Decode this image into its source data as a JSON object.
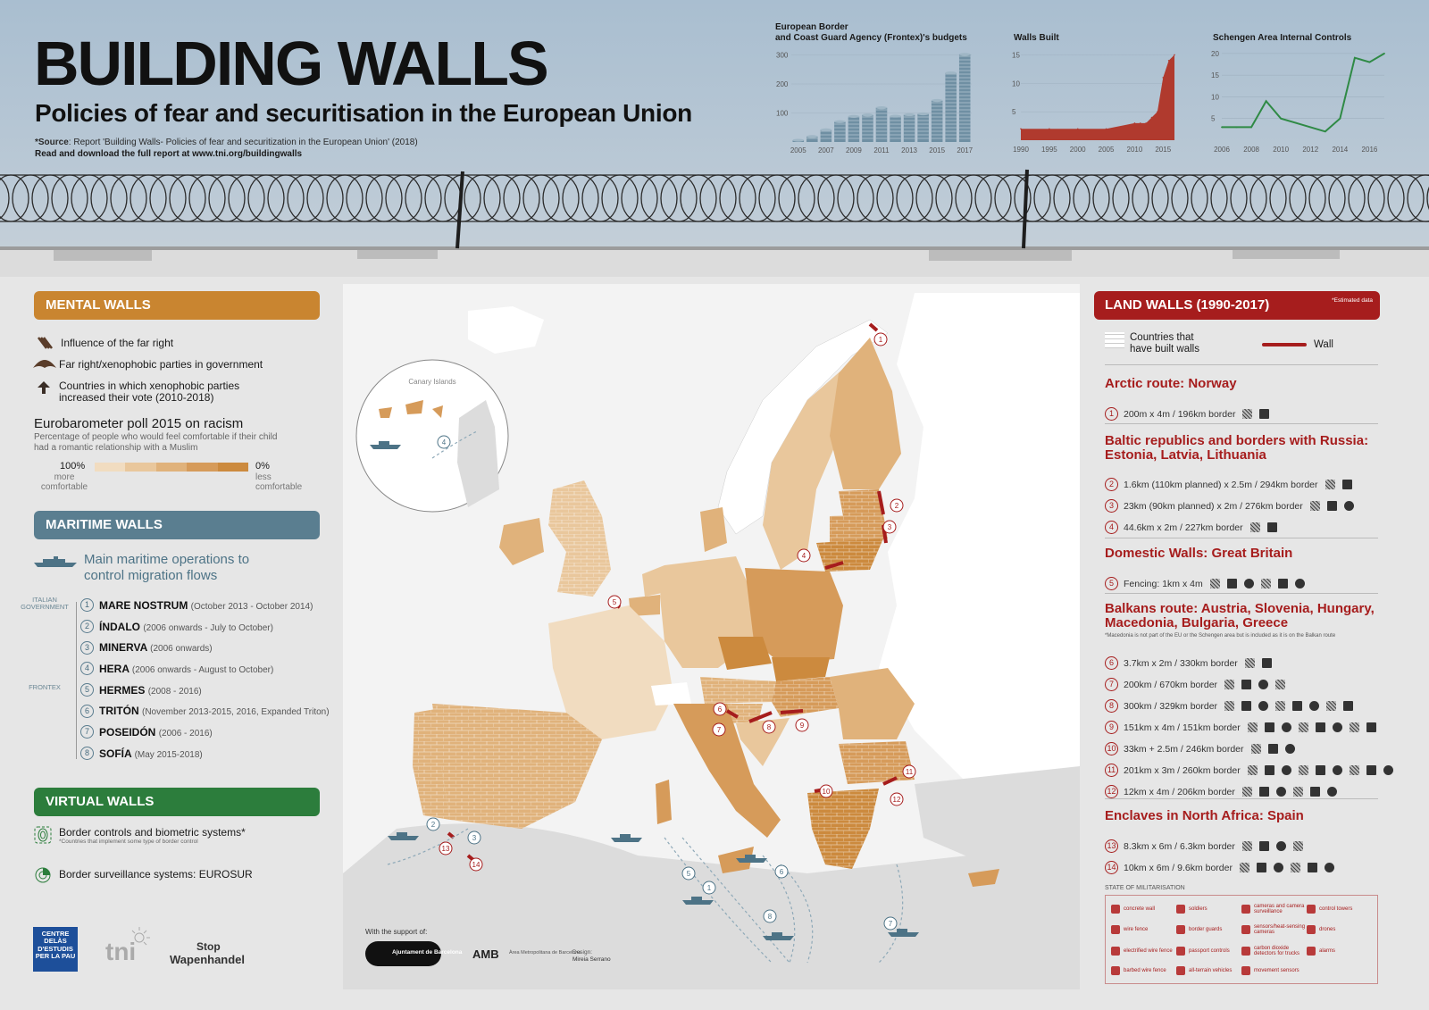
{
  "header": {
    "title": "BUILDING WALLS",
    "subtitle": "Policies of fear and securitisation in the European Union",
    "source_label": "*Source",
    "source_text": ": Report 'Building Walls- Policies of fear and securitization in the European Union' (2018)",
    "download": "Read and download the full report at www.tni.org/buildingwalls"
  },
  "chart_data": [
    {
      "type": "bar",
      "title": "European Border and Coast Guard Agency (Frontex)'s budgets",
      "title_line1": "European Border",
      "title_line2": "and Coast Guard Agency (Frontex)'s budgets",
      "categories": [
        "2005",
        "2006",
        "2007",
        "2008",
        "2009",
        "2010",
        "2011",
        "2012",
        "2013",
        "2014",
        "2015",
        "2016",
        "2017"
      ],
      "values": [
        6,
        19,
        42,
        70,
        88,
        93,
        118,
        89,
        94,
        97,
        143,
        238,
        302
      ],
      "x_ticks": [
        "2005",
        "2007",
        "2009",
        "2011",
        "2013",
        "2015",
        "2017"
      ],
      "y_ticks": [
        "300",
        "200",
        "100"
      ],
      "ylim": [
        0,
        320
      ],
      "color": "#6f8fa3"
    },
    {
      "type": "area",
      "title": "Walls Built",
      "x": [
        1990,
        1995,
        2000,
        2005,
        2010,
        2011,
        2012,
        2013,
        2014,
        2015,
        2016,
        2017
      ],
      "y": [
        2,
        2,
        2,
        2,
        3,
        3,
        3,
        4,
        5,
        11,
        14,
        15
      ],
      "x_ticks": [
        "1990",
        "1995",
        "2000",
        "2005",
        "2010",
        "2015"
      ],
      "y_ticks": [
        "15",
        "10",
        "5"
      ],
      "xlim": [
        1990,
        2017
      ],
      "ylim": [
        0,
        16
      ],
      "color": "#b03a2e"
    },
    {
      "type": "line",
      "title": "Schengen Area Internal Controls",
      "x": [
        2006,
        2007,
        2008,
        2009,
        2010,
        2011,
        2012,
        2013,
        2014,
        2015,
        2016,
        2017
      ],
      "y": [
        3,
        3,
        3,
        9,
        5,
        4,
        3,
        2,
        5,
        19,
        18,
        20
      ],
      "x_ticks": [
        "2006",
        "2008",
        "2010",
        "2012",
        "2014",
        "2016"
      ],
      "y_ticks": [
        "20",
        "15",
        "10",
        "5"
      ],
      "xlim": [
        2006,
        2017
      ],
      "ylim": [
        0,
        21
      ],
      "color": "#2f8a45"
    }
  ],
  "left_panel": {
    "mental": {
      "title": "MENTAL WALLS",
      "legend": [
        {
          "icon": "far-right-influence-icon",
          "text": "Influence of the far right"
        },
        {
          "icon": "far-right-government-icon",
          "text": "Far right/xenophobic parties in government"
        },
        {
          "icon": "arrow-up-icon",
          "text": "Countries in which xenophobic parties increased their vote (2010-2018)"
        }
      ],
      "poll_title": "Eurobarometer poll 2015 on racism",
      "poll_desc": "Percentage of people who would feel comfortable if their child had a romantic relationship with a Muslim",
      "scale_left_pct": "100%",
      "scale_left_label": "more comfortable",
      "scale_right_pct": "0%",
      "scale_right_label": "less comfortable",
      "scale_colors": [
        "#f1dcc0",
        "#e9c79c",
        "#e0b27b",
        "#d69b5a",
        "#cc8a3e"
      ]
    },
    "maritime": {
      "title": "MARITIME WALLS",
      "legend_text": "Main maritime operations to control migration flows",
      "gov_italian": "ITALIAN GOVERNMENT",
      "gov_frontex": "FRONTEX",
      "operations": [
        {
          "num": "1",
          "name": "MARE NOSTRUM",
          "period": "(October 2013 - October 2014)"
        },
        {
          "num": "2",
          "name": "ÍNDALO",
          "period": "(2006 onwards - July to October)"
        },
        {
          "num": "3",
          "name": "MINERVA",
          "period": "(2006 onwards)"
        },
        {
          "num": "4",
          "name": "HERA",
          "period": "(2006 onwards - August to October)"
        },
        {
          "num": "5",
          "name": "HERMES",
          "period": "(2008 - 2016)"
        },
        {
          "num": "6",
          "name": "TRITÓN",
          "period": "(November 2013-2015, 2016, Expanded Triton)"
        },
        {
          "num": "7",
          "name": "POSEIDÓN",
          "period": "(2006 - 2016)"
        },
        {
          "num": "8",
          "name": "SOFÍA",
          "period": "(May 2015-2018)"
        }
      ]
    },
    "virtual": {
      "title": "VIRTUAL WALLS",
      "border_controls": "Border controls and biometric systems*",
      "border_controls_note": "*Countries that implement some type of border control",
      "eurosur": "Border surveillance systems: EUROSUR"
    },
    "logos": {
      "centre_delas": "CENTRE DELÀS D'ESTUDIS PER LA PAU",
      "tni": "tni",
      "stop": "Stop",
      "wapenhandel": "Wapenhandel"
    }
  },
  "map": {
    "canary_label": "Canary Islands",
    "support_label": "With the support of:",
    "ajuntament": "Ajuntament de Barcelona",
    "amb": "AMB",
    "amb_sub": "Àrea Metropolitana de Barcelona",
    "design_label": "Design:",
    "designer": "Mireia Serrano",
    "wall_markers": [
      "1",
      "2",
      "3",
      "4",
      "5",
      "6",
      "7",
      "8",
      "9",
      "10",
      "11",
      "12",
      "13",
      "14"
    ],
    "sea_markers": [
      "1",
      "2",
      "3",
      "4",
      "5",
      "6",
      "7",
      "8"
    ]
  },
  "right_panel": {
    "title": "LAND WALLS (1990-2017)",
    "estimated_note": "*Estimated data",
    "legend_countries": "Countries that have built walls",
    "legend_wall": "Wall",
    "sections": [
      {
        "title": "Arctic route: Norway",
        "rows": [
          {
            "num": "1",
            "text": "200m x 4m / 196km border"
          }
        ]
      },
      {
        "title": "Baltic republics and borders with Russia: Estonia, Latvia, Lithuania",
        "rows": [
          {
            "num": "2",
            "text": "1.6km (110km planned) x 2.5m / 294km border"
          },
          {
            "num": "3",
            "text": "23km (90km planned) x 2m / 276km border"
          },
          {
            "num": "4",
            "text": "44.6km x 2m / 227km border"
          }
        ]
      },
      {
        "title": "Domestic Walls: Great Britain",
        "rows": [
          {
            "num": "5",
            "text": "Fencing: 1km x 4m"
          }
        ]
      },
      {
        "title": "Balkans route: Austria, Slovenia, Hungary, Macedonia, Bulgaria, Greece",
        "note": "*Macedonia is not part of the EU or the Schengen area but is included as it is on the Balkan route",
        "rows": [
          {
            "num": "6",
            "text": "3.7km x 2m / 330km border"
          },
          {
            "num": "7",
            "text": "200km / 670km border"
          },
          {
            "num": "8",
            "text": "300km / 329km border"
          },
          {
            "num": "9",
            "text": "151km x 4m / 151km border"
          },
          {
            "num": "10",
            "text": "33km + 2.5m / 246km border"
          },
          {
            "num": "11",
            "text": "201km x 3m / 260km border"
          },
          {
            "num": "12",
            "text": "12km x 4m / 206km border"
          }
        ]
      },
      {
        "title": "Enclaves in North Africa: Spain",
        "rows": [
          {
            "num": "13",
            "text": "8.3km x 6m / 6.3km border"
          },
          {
            "num": "14",
            "text": "10km x 6m / 9.6km border"
          }
        ]
      }
    ],
    "militarisation_title": "STATE OF MILITARISATION",
    "militarisation_items": [
      "concrete wall",
      "soldiers",
      "cameras and camera surveillance",
      "control towers",
      "wire fence",
      "border guards",
      "sensors/heat-sensing cameras",
      "drones",
      "electrified wire fence",
      "passport controls",
      "carbon dioxide detectors for trucks",
      "alarms",
      "barbed wire fence",
      "all-terrain vehicles",
      "movement sensors"
    ]
  }
}
